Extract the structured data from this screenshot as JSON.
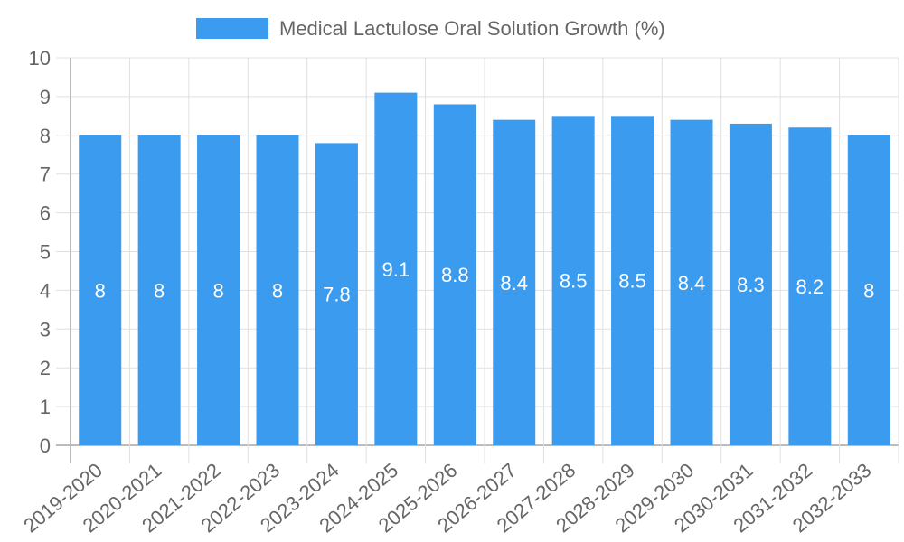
{
  "chart_data": {
    "type": "bar",
    "title": "",
    "legend": [
      {
        "label": "Medical Lactulose Oral Solution Growth (%)",
        "color": "#3a9bef"
      }
    ],
    "legend_position": "top",
    "categories": [
      "2019-2020",
      "2020-2021",
      "2021-2022",
      "2022-2023",
      "2023-2024",
      "2024-2025",
      "2025-2026",
      "2026-2027",
      "2027-2028",
      "2028-2029",
      "2029-2030",
      "2030-2031",
      "2031-2032",
      "2032-2033"
    ],
    "values": [
      8,
      8,
      8,
      8,
      7.8,
      9.1,
      8.8,
      8.4,
      8.5,
      8.5,
      8.4,
      8.3,
      8.2,
      8
    ],
    "xlabel": "",
    "ylabel": "",
    "ylim": [
      0,
      10
    ],
    "yticks": [
      "0",
      "1",
      "2",
      "3",
      "4",
      "5",
      "6",
      "7",
      "8",
      "9",
      "10"
    ],
    "grid": true,
    "data_labels": true
  }
}
